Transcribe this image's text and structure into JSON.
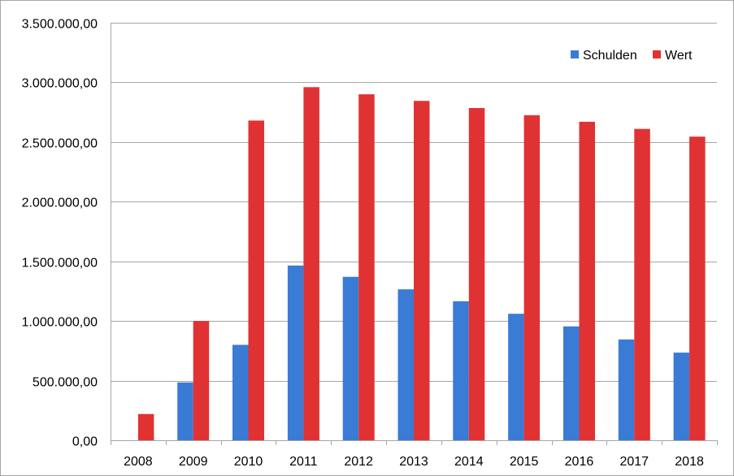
{
  "chart_data": {
    "type": "bar",
    "title": "",
    "xlabel": "",
    "ylabel": "",
    "categories": [
      "2008",
      "2009",
      "2010",
      "2011",
      "2012",
      "2013",
      "2014",
      "2015",
      "2016",
      "2017",
      "2018"
    ],
    "series": [
      {
        "name": "Schulden",
        "color": "#3a7bd5",
        "values": [
          0,
          485000,
          800000,
          1465000,
          1370000,
          1265000,
          1165000,
          1060000,
          955000,
          845000,
          735000
        ]
      },
      {
        "name": "Wert",
        "color": "#e03232",
        "values": [
          220000,
          1000000,
          2680000,
          2960000,
          2900000,
          2845000,
          2785000,
          2725000,
          2670000,
          2610000,
          2545000
        ]
      }
    ],
    "ylim": [
      0,
      3500000
    ],
    "yticks": [
      0,
      500000,
      1000000,
      1500000,
      2000000,
      2500000,
      3000000,
      3500000
    ],
    "ytick_labels": [
      "0,00",
      "500.000,00",
      "1.000.000,00",
      "1.500.000,00",
      "2.000.000,00",
      "2.500.000,00",
      "3.000.000,00",
      "3.500.000,00"
    ],
    "grid": true,
    "legend_position": "top-right",
    "gridline_color": "#a6a6a6",
    "axis_color": "#a6a6a6"
  }
}
